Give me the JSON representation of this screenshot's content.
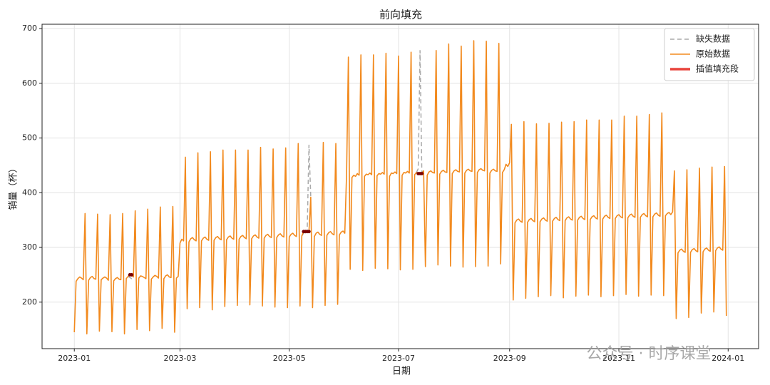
{
  "chart_data": {
    "type": "line",
    "title": "前向填充",
    "x_label": "日期",
    "y_label": "销量（杯）",
    "watermark": "公众号 · 时序课堂",
    "xlim": [
      -18,
      382
    ],
    "ylim": [
      115,
      708
    ],
    "xticks": [
      {
        "value": 0,
        "label": "2023-01"
      },
      {
        "value": 59,
        "label": "2023-03"
      },
      {
        "value": 120,
        "label": "2023-05"
      },
      {
        "value": 181,
        "label": "2023-07"
      },
      {
        "value": 243,
        "label": "2023-09"
      },
      {
        "value": 304,
        "label": "2023-11"
      },
      {
        "value": 365,
        "label": "2024-01"
      }
    ],
    "yticks": [
      200,
      300,
      400,
      500,
      600,
      700
    ],
    "grid": true,
    "legend": "upper right",
    "x": [
      0,
      1,
      2,
      3,
      4,
      5,
      6,
      7,
      8,
      9,
      10,
      11,
      12,
      13,
      14,
      15,
      16,
      17,
      18,
      19,
      20,
      21,
      22,
      23,
      24,
      25,
      26,
      27,
      28,
      29,
      30,
      31,
      32,
      33,
      34,
      35,
      36,
      37,
      38,
      39,
      40,
      41,
      42,
      43,
      44,
      45,
      46,
      47,
      48,
      49,
      50,
      51,
      52,
      53,
      54,
      55,
      56,
      57,
      58,
      59,
      60,
      61,
      62,
      63,
      64,
      65,
      66,
      67,
      68,
      69,
      70,
      71,
      72,
      73,
      74,
      75,
      76,
      77,
      78,
      79,
      80,
      81,
      82,
      83,
      84,
      85,
      86,
      87,
      88,
      89,
      90,
      91,
      92,
      93,
      94,
      95,
      96,
      97,
      98,
      99,
      100,
      101,
      102,
      103,
      104,
      105,
      106,
      107,
      108,
      109,
      110,
      111,
      112,
      113,
      114,
      115,
      116,
      117,
      118,
      119,
      120,
      121,
      122,
      123,
      124,
      125,
      126,
      127,
      128,
      129,
      130,
      131,
      132,
      133,
      134,
      135,
      136,
      137,
      138,
      139,
      140,
      141,
      142,
      143,
      144,
      145,
      146,
      147,
      148,
      149,
      150,
      151,
      152,
      153,
      154,
      155,
      156,
      157,
      158,
      159,
      160,
      161,
      162,
      163,
      164,
      165,
      166,
      167,
      168,
      169,
      170,
      171,
      172,
      173,
      174,
      175,
      176,
      177,
      178,
      179,
      180,
      181,
      182,
      183,
      184,
      185,
      186,
      187,
      188,
      189,
      190,
      191,
      192,
      193,
      194,
      195,
      196,
      197,
      198,
      199,
      200,
      201,
      202,
      203,
      204,
      205,
      206,
      207,
      208,
      209,
      210,
      211,
      212,
      213,
      214,
      215,
      216,
      217,
      218,
      219,
      220,
      221,
      222,
      223,
      224,
      225,
      226,
      227,
      228,
      229,
      230,
      231,
      232,
      233,
      234,
      235,
      236,
      237,
      238,
      239,
      240,
      241,
      242,
      243,
      244,
      245,
      246,
      247,
      248,
      249,
      250,
      251,
      252,
      253,
      254,
      255,
      256,
      257,
      258,
      259,
      260,
      261,
      262,
      263,
      264,
      265,
      266,
      267,
      268,
      269,
      270,
      271,
      272,
      273,
      274,
      275,
      276,
      277,
      278,
      279,
      280,
      281,
      282,
      283,
      284,
      285,
      286,
      287,
      288,
      289,
      290,
      291,
      292,
      293,
      294,
      295,
      296,
      297,
      298,
      299,
      300,
      301,
      302,
      303,
      304,
      305,
      306,
      307,
      308,
      309,
      310,
      311,
      312,
      313,
      314,
      315,
      316,
      317,
      318,
      319,
      320,
      321,
      322,
      323,
      324,
      325,
      326,
      327,
      328,
      329,
      330,
      331,
      332,
      333,
      334,
      335,
      336,
      337,
      338,
      339,
      340,
      341,
      342,
      343,
      344,
      345,
      346,
      347,
      348,
      349,
      350,
      351,
      352,
      353,
      354,
      355,
      356,
      357,
      358,
      359,
      360,
      361,
      362,
      363,
      364
    ],
    "series": [
      {
        "name": "缺失数据",
        "color": "#aaaaaa",
        "dash": true,
        "width": 1.5,
        "x": [
          30,
          31,
          32,
          33,
          null,
          127,
          128,
          129,
          130,
          131,
          132,
          null,
          191,
          192,
          193,
          194,
          195
        ],
        "values": [
          247,
          245,
          243,
          246,
          null,
          321,
          326,
          331,
          328,
          487,
          392,
          null,
          437,
          444,
          660,
          438,
          440
        ]
      },
      {
        "name": "原始数据",
        "color": "#f28a1e",
        "width": 1.6,
        "values": [
          145,
          238,
          243,
          246,
          244,
          241,
          362,
          142,
          240,
          245,
          247,
          243,
          242,
          361,
          147,
          241,
          244,
          246,
          244,
          240,
          360,
          146,
          239,
          243,
          245,
          242,
          241,
          362,
          142,
          243,
          247,
          250,
          250,
          246,
          367,
          150,
          244,
          248,
          247,
          245,
          243,
          370,
          148,
          242,
          246,
          249,
          247,
          244,
          374,
          152,
          243,
          248,
          250,
          246,
          245,
          375,
          145,
          244,
          247,
          308,
          315,
          312,
          465,
          188,
          310,
          316,
          318,
          314,
          312,
          473,
          190,
          312,
          317,
          319,
          315,
          313,
          475,
          186,
          313,
          318,
          320,
          316,
          314,
          478,
          192,
          314,
          319,
          321,
          317,
          315,
          478,
          194,
          315,
          320,
          322,
          318,
          316,
          478,
          195,
          316,
          321,
          323,
          319,
          317,
          483,
          193,
          317,
          322,
          324,
          320,
          318,
          480,
          191,
          318,
          323,
          325,
          321,
          319,
          482,
          190,
          319,
          324,
          326,
          322,
          320,
          490,
          193,
          321,
          329,
          329,
          329,
          329,
          392,
          190,
          320,
          326,
          328,
          324,
          322,
          492,
          194,
          322,
          327,
          329,
          325,
          323,
          490,
          196,
          323,
          328,
          330,
          326,
          436,
          648,
          260,
          428,
          432,
          430,
          435,
          432,
          652,
          258,
          430,
          434,
          433,
          436,
          433,
          652,
          262,
          431,
          435,
          434,
          437,
          434,
          655,
          261,
          430,
          436,
          435,
          438,
          435,
          650,
          259,
          432,
          437,
          436,
          439,
          436,
          657,
          260,
          433,
          437,
          435,
          435,
          435,
          440,
          265,
          432,
          438,
          440,
          437,
          436,
          660,
          268,
          434,
          439,
          441,
          438,
          437,
          672,
          266,
          435,
          440,
          442,
          439,
          438,
          668,
          264,
          436,
          441,
          443,
          440,
          439,
          678,
          265,
          437,
          442,
          444,
          441,
          440,
          677,
          266,
          436,
          441,
          443,
          440,
          439,
          673,
          270,
          437,
          442,
          452,
          448,
          455,
          525,
          204,
          345,
          350,
          352,
          348,
          346,
          530,
          207,
          346,
          351,
          353,
          349,
          347,
          526,
          210,
          347,
          352,
          354,
          350,
          348,
          527,
          212,
          348,
          353,
          355,
          351,
          349,
          529,
          208,
          349,
          354,
          356,
          352,
          350,
          530,
          211,
          350,
          355,
          357,
          353,
          351,
          533,
          213,
          351,
          356,
          358,
          354,
          352,
          533,
          210,
          352,
          357,
          359,
          355,
          353,
          533,
          212,
          353,
          358,
          360,
          356,
          354,
          540,
          214,
          354,
          359,
          361,
          357,
          355,
          540,
          211,
          355,
          360,
          362,
          358,
          356,
          543,
          213,
          356,
          361,
          363,
          359,
          357,
          546,
          212,
          358,
          362,
          364,
          360,
          365,
          440,
          170,
          290,
          295,
          297,
          293,
          291,
          442,
          172,
          291,
          296,
          298,
          294,
          292,
          445,
          180,
          292,
          297,
          299,
          295,
          293,
          447,
          182,
          294,
          299,
          301,
          297,
          295,
          448,
          175
        ]
      },
      {
        "name": "插值填充段",
        "color": "#e8423a",
        "width": 3.5,
        "marker_color": "#7a0000",
        "x": [
          31,
          32,
          null,
          128,
          129,
          130,
          131,
          null,
          192,
          193,
          194
        ],
        "values": [
          250,
          250,
          null,
          329,
          329,
          329,
          329,
          null,
          435,
          435,
          435
        ]
      }
    ]
  }
}
